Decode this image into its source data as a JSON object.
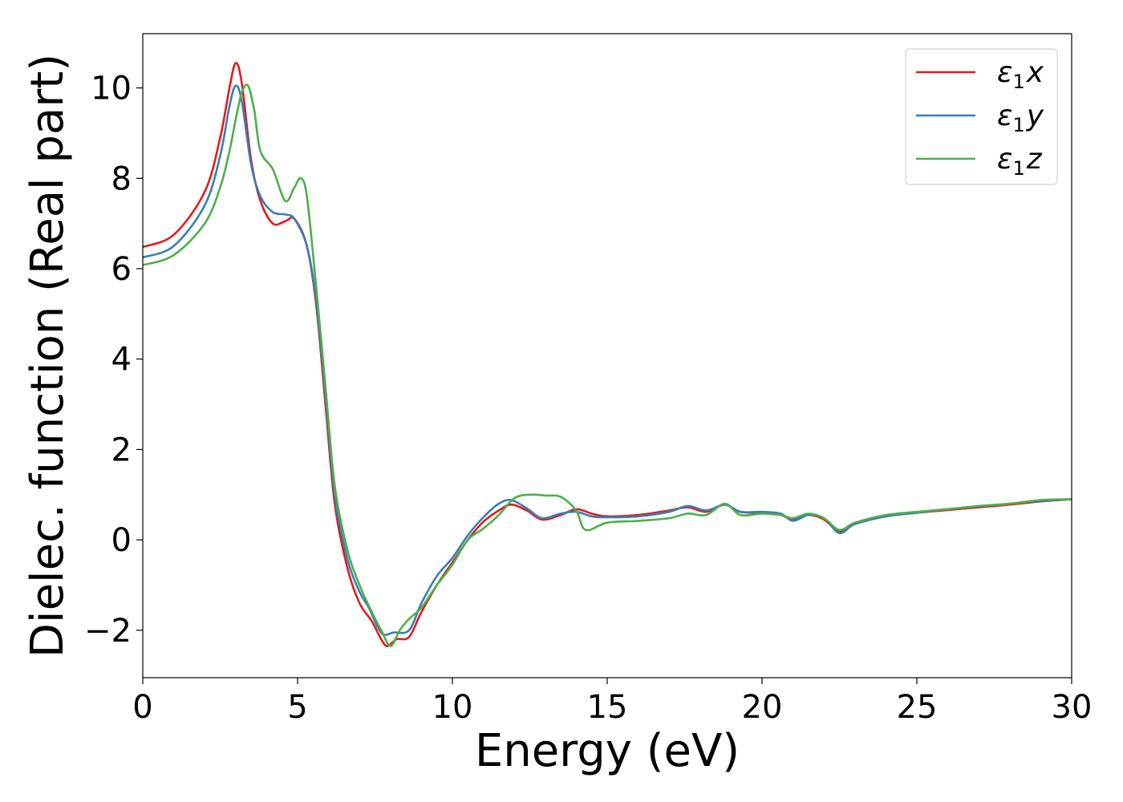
{
  "chart_data": {
    "type": "line",
    "title": "",
    "xlabel": "Energy (eV)",
    "ylabel": "Dielec. function (Real part)",
    "xlim": [
      0,
      30
    ],
    "ylim": [
      -3.05,
      11.2
    ],
    "xticks": [
      0,
      5,
      10,
      15,
      20,
      25,
      30
    ],
    "xtick_labels": [
      "0",
      "5",
      "10",
      "15",
      "20",
      "25",
      "30"
    ],
    "yticks": [
      -2,
      0,
      2,
      4,
      6,
      8,
      10
    ],
    "ytick_labels": [
      "−2",
      "0",
      "2",
      "4",
      "6",
      "8",
      "10"
    ],
    "grid": false,
    "legend_position": "top-right",
    "series": [
      {
        "name": "ε₁x",
        "legend_base": "ε",
        "legend_sub": "1",
        "legend_var": "x",
        "color": "#e41a1c",
        "x": [
          0,
          1,
          2,
          2.5,
          2.8,
          3.0,
          3.2,
          3.5,
          3.8,
          4.2,
          4.6,
          4.9,
          5.3,
          5.6,
          5.9,
          6.2,
          6.6,
          7.0,
          7.4,
          7.7,
          7.9,
          8.2,
          8.6,
          9.0,
          9.5,
          10.0,
          10.5,
          11.0,
          11.5,
          11.9,
          12.4,
          12.9,
          13.5,
          14.0,
          14.5,
          15.0,
          16.0,
          17.0,
          17.6,
          18.2,
          18.8,
          19.3,
          20.0,
          20.6,
          21.0,
          21.5,
          22.0,
          22.5,
          23.0,
          24.0,
          25.0,
          26.0,
          27.0,
          28.0,
          29.0,
          30.0
        ],
        "values": [
          6.48,
          6.75,
          7.7,
          8.9,
          10.0,
          10.55,
          10.1,
          8.4,
          7.5,
          7.0,
          7.05,
          7.1,
          6.5,
          5.2,
          3.0,
          0.8,
          -0.6,
          -1.4,
          -1.8,
          -2.2,
          -2.35,
          -2.2,
          -2.15,
          -1.6,
          -1.0,
          -0.5,
          0.0,
          0.4,
          0.65,
          0.78,
          0.65,
          0.45,
          0.55,
          0.68,
          0.58,
          0.52,
          0.55,
          0.65,
          0.72,
          0.62,
          0.78,
          0.62,
          0.6,
          0.55,
          0.45,
          0.55,
          0.45,
          0.18,
          0.35,
          0.52,
          0.6,
          0.66,
          0.72,
          0.78,
          0.85,
          0.9
        ]
      },
      {
        "name": "ε₁y",
        "legend_base": "ε",
        "legend_sub": "1",
        "legend_var": "y",
        "color": "#377eb8",
        "x": [
          0,
          1,
          2,
          2.5,
          2.8,
          3.0,
          3.2,
          3.5,
          3.8,
          4.2,
          4.6,
          4.9,
          5.3,
          5.6,
          5.9,
          6.2,
          6.6,
          7.0,
          7.3,
          7.6,
          7.8,
          8.1,
          8.6,
          9.0,
          9.5,
          10.0,
          10.5,
          11.0,
          11.5,
          11.9,
          12.4,
          12.9,
          13.5,
          14.0,
          14.5,
          15.0,
          16.0,
          17.0,
          17.6,
          18.2,
          18.8,
          19.3,
          20.0,
          20.6,
          21.0,
          21.5,
          22.0,
          22.5,
          23.0,
          24.0,
          25.0,
          26.0,
          27.0,
          28.0,
          29.0,
          30.0
        ],
        "values": [
          6.25,
          6.5,
          7.4,
          8.5,
          9.6,
          10.05,
          9.7,
          8.3,
          7.6,
          7.25,
          7.2,
          7.1,
          6.5,
          5.3,
          3.2,
          1.0,
          -0.4,
          -1.15,
          -1.5,
          -1.95,
          -2.1,
          -2.05,
          -2.0,
          -1.4,
          -0.8,
          -0.4,
          0.1,
          0.5,
          0.8,
          0.88,
          0.7,
          0.48,
          0.58,
          0.62,
          0.52,
          0.5,
          0.52,
          0.62,
          0.75,
          0.65,
          0.78,
          0.62,
          0.62,
          0.58,
          0.42,
          0.55,
          0.48,
          0.15,
          0.35,
          0.52,
          0.6,
          0.68,
          0.74,
          0.8,
          0.86,
          0.9
        ]
      },
      {
        "name": "ε₁z",
        "legend_base": "ε",
        "legend_sub": "1",
        "legend_var": "z",
        "color": "#4daf4a",
        "x": [
          0,
          1,
          2,
          2.5,
          2.8,
          3.0,
          3.2,
          3.4,
          3.6,
          3.8,
          4.2,
          4.6,
          4.9,
          5.1,
          5.3,
          5.6,
          5.9,
          6.2,
          6.6,
          7.0,
          7.4,
          7.7,
          8.0,
          8.3,
          8.6,
          9.0,
          9.5,
          10.0,
          10.5,
          11.0,
          11.5,
          12.0,
          12.5,
          13.0,
          13.5,
          14.0,
          14.3,
          15.0,
          16.0,
          17.0,
          17.6,
          18.2,
          18.8,
          19.3,
          20.0,
          20.6,
          21.0,
          21.5,
          22.0,
          22.5,
          23.0,
          24.0,
          25.0,
          26.0,
          27.0,
          28.0,
          29.0,
          30.0
        ],
        "values": [
          6.08,
          6.3,
          7.0,
          7.8,
          8.6,
          9.3,
          9.9,
          10.05,
          9.5,
          8.6,
          8.2,
          7.5,
          7.8,
          8.0,
          7.6,
          5.6,
          3.4,
          1.2,
          -0.2,
          -1.0,
          -1.6,
          -2.0,
          -2.35,
          -2.0,
          -1.75,
          -1.5,
          -1.0,
          -0.55,
          0.0,
          0.25,
          0.55,
          0.92,
          1.0,
          0.98,
          0.95,
          0.65,
          0.22,
          0.38,
          0.42,
          0.48,
          0.58,
          0.55,
          0.8,
          0.55,
          0.58,
          0.55,
          0.48,
          0.58,
          0.48,
          0.22,
          0.38,
          0.55,
          0.62,
          0.68,
          0.75,
          0.8,
          0.88,
          0.9
        ]
      }
    ]
  }
}
